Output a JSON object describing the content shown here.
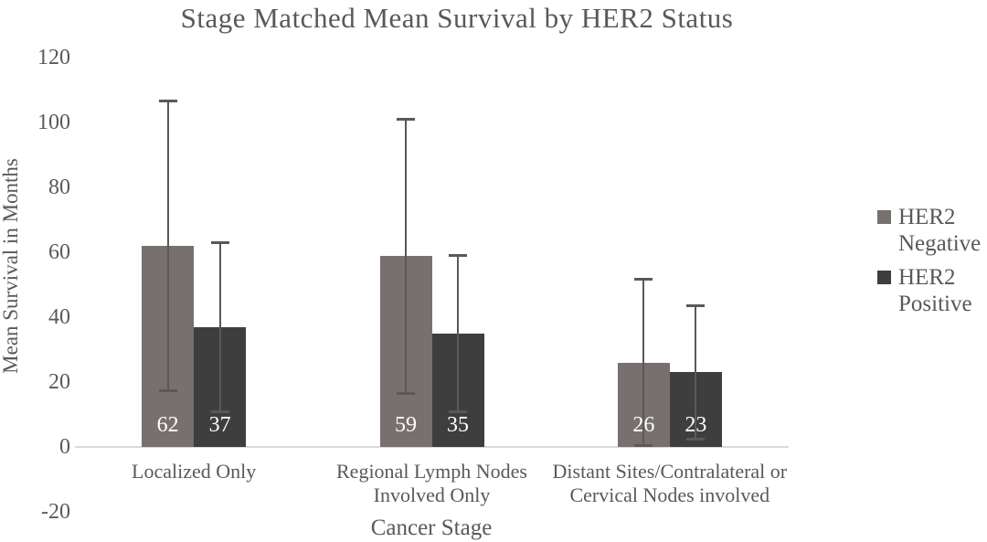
{
  "chart_data": {
    "type": "bar",
    "title": "Stage Matched Mean Survival by HER2 Status",
    "xlabel": "Cancer Stage",
    "ylabel": "Mean Survival in Months",
    "categories": [
      "Localized Only",
      "Regional Lymph Nodes\nInvolved Only",
      "Distant Sites/Contralateral or\nCervical Nodes involved"
    ],
    "series": [
      {
        "name": "HER2\nNegative",
        "color": "#786f6f",
        "values": [
          62,
          59,
          26
        ],
        "error_low": [
          17,
          16,
          0
        ],
        "error_high": [
          107,
          101.5,
          52
        ]
      },
      {
        "name": "HER2\nPositive",
        "color": "#3e3e3e",
        "values": [
          37,
          35,
          23
        ],
        "error_low": [
          10.5,
          10.5,
          2
        ],
        "error_high": [
          63.5,
          59.5,
          44
        ]
      }
    ],
    "ylim": [
      -20,
      120
    ],
    "yticks": [
      120,
      100,
      80,
      60,
      40,
      20,
      0,
      -20
    ],
    "grid": false,
    "legend_position": "right",
    "bar_labels_shown": true,
    "bar_label_color": "#ffffff",
    "error_bar_color": "#595959",
    "axis_line_color": "#d9d9d9",
    "text_color": "#595959",
    "background_color": "#ffffff"
  }
}
